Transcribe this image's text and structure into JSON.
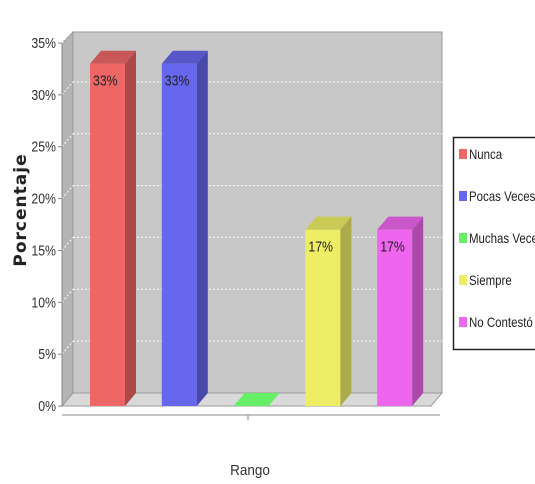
{
  "chart_data": {
    "type": "bar",
    "title": "",
    "xlabel": "Rango",
    "ylabel": "Porcentaje",
    "ylim": [
      0,
      35
    ],
    "yticks": [
      "0%",
      "5%",
      "10%",
      "15%",
      "20%",
      "25%",
      "30%",
      "35%"
    ],
    "grid": true,
    "legend_position": "right",
    "three_d": true,
    "series": [
      {
        "name": "Nunca",
        "value": 33,
        "label": "33%",
        "color": "#ee6666"
      },
      {
        "name": "Pocas Veces",
        "value": 33,
        "label": "33%",
        "color": "#6666ee"
      },
      {
        "name": "Muchas Veces",
        "value": 0,
        "label": "",
        "color": "#66ee66"
      },
      {
        "name": "Siempre",
        "value": 17,
        "label": "17%",
        "color": "#eeee66"
      },
      {
        "name": "No Contestó",
        "value": 17,
        "label": "17%",
        "color": "#ee66ee"
      }
    ],
    "colors": {
      "plot_background": "#c8c8c8",
      "plot_wall": "#d9d9d9",
      "gridline": "#ffffff"
    }
  }
}
